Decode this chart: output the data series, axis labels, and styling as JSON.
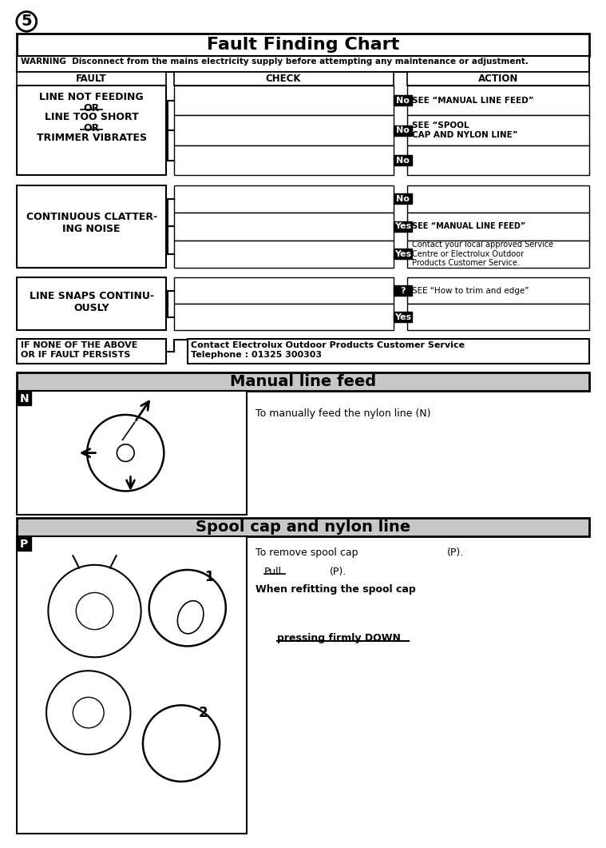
{
  "page_number": "5",
  "title_fault": "Fault Finding Chart",
  "warning_text": "WARNING  Disconnect from the mains electricity supply before attempting any maintenance or adjustment.",
  "col_fault": "FAULT",
  "col_check": "CHECK",
  "col_action": "ACTION",
  "title_manual": "Manual line feed",
  "title_spool": "Spool cap and nylon line",
  "manual_desc": "To manually feed the nylon line (N)",
  "spool_desc1": "To remove spool cap",
  "spool_desc2": "(P).",
  "spool_desc3": "Pull",
  "spool_desc4": "(P).",
  "spool_desc5": "When refitting the spool cap",
  "spool_desc6": "pressing firmly DOWN",
  "fault4_label": "IF NONE OF THE ABOVE\nOR IF FAULT PERSISTS",
  "fault4_action": "Contact Electrolux Outdoor Products Customer Service\nTelephone : 01325 300303",
  "f1_badges": [
    "No",
    "No",
    "No"
  ],
  "f2_badges": [
    "No",
    "Yes",
    "Yes"
  ],
  "f3_badges": [
    "?",
    "Yes"
  ],
  "f1_actions": [
    "SEE “MANUAL LINE FEED”",
    "SEE “SPOOL\nCAP AND NYLON LINE”",
    ""
  ],
  "f2_actions": [
    "",
    "SEE “MANUAL LINE FEED”",
    "Contact your local approved Service\nCentre or Electrolux Outdoor\nProducts Customer Service."
  ],
  "f3_actions": [
    "SEE “How to trim and edge”",
    ""
  ],
  "bg_color": "#ffffff",
  "badge_bg": "#000000",
  "badge_fg": "#ffffff",
  "border_color": "#000000"
}
